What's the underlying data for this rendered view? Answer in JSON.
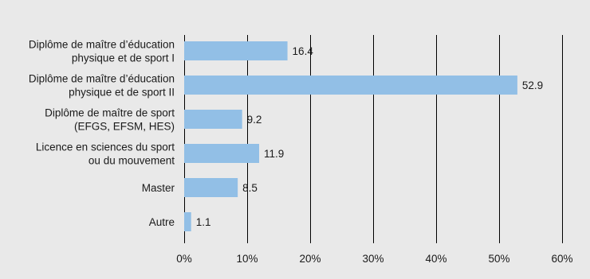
{
  "chart_data": {
    "type": "bar",
    "orientation": "horizontal",
    "categories": [
      [
        "Diplôme de maître d’éducation",
        "physique et de sport I"
      ],
      [
        "Diplôme de maître d’éducation",
        "physique et de sport II"
      ],
      [
        "Diplôme de maître de sport",
        "(EFGS, EFSM, HES)"
      ],
      [
        "Licence en sciences du sport",
        "ou du mouvement"
      ],
      [
        "Master"
      ],
      [
        "Autre"
      ]
    ],
    "values": [
      16.4,
      52.9,
      9.2,
      11.9,
      8.5,
      1.1
    ],
    "value_labels": [
      "16.4",
      "52.9",
      "9.2",
      "11.9",
      "8.5",
      "1.1"
    ],
    "x_ticks": [
      0,
      10,
      20,
      30,
      40,
      50,
      60
    ],
    "x_tick_labels": [
      "0%",
      "10%",
      "20%",
      "30%",
      "40%",
      "50%",
      "60%"
    ],
    "xlim": [
      0,
      60
    ],
    "grid": "vertical",
    "legend": "none",
    "title": "",
    "xlabel": "",
    "ylabel": "",
    "colors": {
      "bar": "#92bfe6",
      "background": "#e9e9e9",
      "grid": "#000000"
    }
  }
}
